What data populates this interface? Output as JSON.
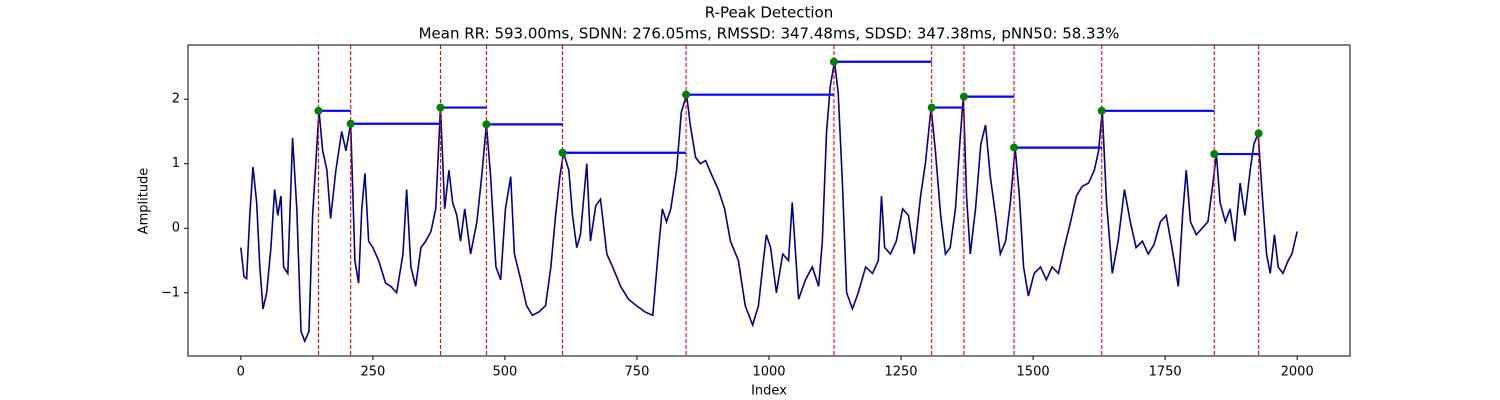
{
  "chart_data": {
    "type": "line",
    "title": "R-Peak Detection",
    "subtitle": "Mean RR: 593.00ms, SDNN: 276.05ms, RMSSD: 347.48ms, SDSD: 347.38ms, pNN50: 58.33%",
    "xlabel": "Index",
    "ylabel": "Amplitude",
    "xlim": [
      -100,
      2100
    ],
    "ylim": [
      -1.98,
      2.84
    ],
    "xticks": [
      0,
      250,
      500,
      750,
      1000,
      1250,
      1500,
      1750,
      2000
    ],
    "yticks": [
      {
        "value": -1,
        "label": "−1"
      },
      0,
      1,
      2
    ],
    "signal": {
      "color": "#00008b",
      "x": [
        0,
        6,
        11,
        17,
        23,
        30,
        36,
        42,
        49,
        57,
        64,
        70,
        76,
        81,
        89,
        98,
        106,
        114,
        121,
        129,
        136,
        148,
        155,
        163,
        170,
        180,
        191,
        199,
        208,
        216,
        223,
        229,
        235,
        242,
        250,
        261,
        274,
        284,
        295,
        307,
        314,
        322,
        331,
        341,
        350,
        360,
        369,
        378,
        386,
        394,
        401,
        409,
        416,
        424,
        435,
        447,
        456,
        465,
        473,
        483,
        492,
        501,
        511,
        518,
        530,
        541,
        552,
        564,
        577,
        587,
        596,
        604,
        611,
        621,
        628,
        636,
        643,
        655,
        662,
        672,
        681,
        693,
        704,
        719,
        734,
        749,
        766,
        780,
        791,
        798,
        806,
        814,
        825,
        834,
        844,
        851,
        861,
        870,
        880,
        893,
        904,
        916,
        927,
        942,
        955,
        969,
        980,
        988,
        995,
        1003,
        1014,
        1026,
        1037,
        1044,
        1056,
        1069,
        1082,
        1094,
        1101,
        1109,
        1116,
        1124,
        1131,
        1139,
        1147,
        1158,
        1169,
        1183,
        1196,
        1207,
        1213,
        1219,
        1230,
        1241,
        1253,
        1264,
        1275,
        1287,
        1296,
        1307,
        1315,
        1325,
        1334,
        1343,
        1353,
        1362,
        1368,
        1374,
        1381,
        1391,
        1401,
        1410,
        1419,
        1429,
        1438,
        1448,
        1457,
        1466,
        1474,
        1482,
        1491,
        1502,
        1514,
        1525,
        1536,
        1548,
        1559,
        1571,
        1582,
        1593,
        1605,
        1616,
        1624,
        1631,
        1639,
        1650,
        1661,
        1673,
        1684,
        1695,
        1707,
        1718,
        1729,
        1741,
        1752,
        1763,
        1775,
        1783,
        1790,
        1798,
        1809,
        1820,
        1831,
        1839,
        1847,
        1854,
        1864,
        1873,
        1882,
        1892,
        1901,
        1911,
        1918,
        1926,
        1934,
        1942,
        1949,
        1957,
        1964,
        1973,
        1983,
        1990,
        2000
      ],
      "values": [
        -0.3,
        -0.75,
        -0.78,
        0.2,
        0.95,
        0.4,
        -0.6,
        -1.25,
        -1.0,
        -0.3,
        0.6,
        0.2,
        0.5,
        -0.6,
        -0.7,
        1.4,
        0.3,
        -1.6,
        -1.75,
        -1.6,
        0.2,
        1.82,
        1.2,
        0.9,
        0.15,
        0.9,
        1.5,
        1.2,
        1.62,
        -0.5,
        -0.85,
        0.3,
        0.85,
        -0.2,
        -0.3,
        -0.5,
        -0.85,
        -0.9,
        -1.0,
        -0.4,
        0.6,
        -0.6,
        -0.9,
        -0.3,
        -0.2,
        -0.05,
        0.3,
        1.87,
        0.3,
        0.9,
        0.4,
        0.2,
        -0.2,
        0.3,
        -0.4,
        0.1,
        0.8,
        1.61,
        0.8,
        -0.6,
        -0.8,
        0.3,
        0.8,
        -0.4,
        -0.8,
        -1.2,
        -1.35,
        -1.3,
        -1.2,
        -0.6,
        0.2,
        0.8,
        1.17,
        0.9,
        0.2,
        -0.3,
        -0.1,
        1.0,
        -0.2,
        0.35,
        0.45,
        -0.4,
        -0.6,
        -0.9,
        -1.1,
        -1.2,
        -1.3,
        -1.35,
        -0.3,
        0.3,
        0.1,
        0.3,
        0.9,
        1.8,
        2.07,
        1.6,
        1.1,
        1.0,
        1.05,
        0.8,
        0.6,
        0.3,
        -0.2,
        -0.5,
        -1.2,
        -1.5,
        -1.2,
        -0.6,
        -0.1,
        -0.3,
        -1.0,
        -0.4,
        -0.5,
        0.4,
        -1.1,
        -0.8,
        -0.6,
        -0.9,
        -0.2,
        1.5,
        2.2,
        2.58,
        2.1,
        0.7,
        -1.0,
        -1.25,
        -1.0,
        -0.6,
        -0.7,
        -0.5,
        0.5,
        -0.3,
        -0.4,
        -0.2,
        0.3,
        0.2,
        -0.4,
        0.5,
        1.0,
        1.87,
        1.2,
        0.2,
        -0.4,
        -0.3,
        0.3,
        1.4,
        2.04,
        0.5,
        -0.4,
        0.3,
        1.3,
        1.6,
        0.8,
        0.2,
        -0.4,
        -0.2,
        0.4,
        1.25,
        0.5,
        -0.6,
        -1.05,
        -0.7,
        -0.6,
        -0.8,
        -0.6,
        -0.7,
        -0.3,
        0.1,
        0.5,
        0.65,
        0.7,
        0.9,
        1.2,
        1.82,
        0.4,
        -0.7,
        -0.2,
        0.6,
        0.1,
        -0.3,
        -0.2,
        -0.4,
        -0.25,
        0.1,
        0.2,
        -0.3,
        -0.9,
        0.2,
        0.9,
        0.1,
        -0.1,
        0.0,
        0.1,
        0.6,
        1.15,
        0.4,
        0.1,
        0.3,
        -0.2,
        0.7,
        0.2,
        0.9,
        1.3,
        1.47,
        0.5,
        -0.4,
        -0.7,
        -0.1,
        -0.6,
        -0.7,
        -0.5,
        -0.4,
        -0.05
      ]
    },
    "peaks": {
      "color": "#008000",
      "line_color": "#ff0000",
      "rr_color": "#0000ff",
      "x": [
        147,
        208,
        378,
        465,
        609,
        843,
        1123,
        1308,
        1369,
        1464,
        1630,
        1843,
        1927
      ],
      "values": [
        1.82,
        1.62,
        1.87,
        1.61,
        1.17,
        2.07,
        2.58,
        1.87,
        2.04,
        1.25,
        1.82,
        1.15,
        1.47
      ]
    }
  }
}
